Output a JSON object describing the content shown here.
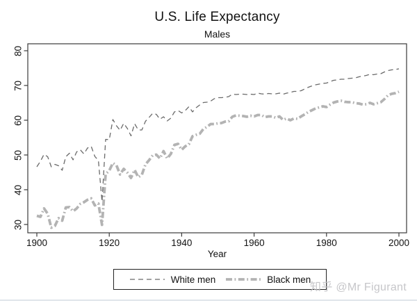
{
  "title": "U.S. Life Expectancy",
  "subtitle": "Males",
  "xaxis_title": "Year",
  "watermark": "知乎 @Mr Figurant",
  "axes": {
    "x_ticks": [
      1900,
      1920,
      1940,
      1960,
      1980,
      2000
    ],
    "y_ticks": [
      30,
      40,
      50,
      60,
      70,
      80
    ],
    "grid": "off",
    "legend_position": "bottom-center"
  },
  "styles": {
    "axis_color": "#3a3a3a",
    "white_men": {
      "color": "#6a6a6a",
      "width": 1.3,
      "dash": "7 5"
    },
    "black_men": {
      "color": "#b3b3b3",
      "width": 3.8,
      "dash": "9 3.5 1.8 3.5"
    }
  },
  "legend": {
    "entries": [
      {
        "label": "White men",
        "style": "white_men"
      },
      {
        "label": "Black men",
        "style": "black_men"
      }
    ]
  },
  "chart_data": {
    "type": "line",
    "title": "U.S. Life Expectancy",
    "subtitle": "Males",
    "xlabel": "Year",
    "ylabel": "",
    "xlim": [
      1897.5,
      2002
    ],
    "ylim": [
      27.5,
      82
    ],
    "x": [
      1900,
      1901,
      1902,
      1903,
      1904,
      1905,
      1906,
      1907,
      1908,
      1909,
      1910,
      1911,
      1912,
      1913,
      1914,
      1915,
      1916,
      1917,
      1918,
      1919,
      1920,
      1921,
      1922,
      1923,
      1924,
      1925,
      1926,
      1927,
      1928,
      1929,
      1930,
      1931,
      1932,
      1933,
      1934,
      1935,
      1936,
      1937,
      1938,
      1939,
      1940,
      1941,
      1942,
      1943,
      1944,
      1945,
      1946,
      1947,
      1948,
      1949,
      1950,
      1951,
      1952,
      1953,
      1954,
      1955,
      1956,
      1957,
      1958,
      1959,
      1960,
      1961,
      1962,
      1963,
      1964,
      1965,
      1966,
      1967,
      1968,
      1969,
      1970,
      1971,
      1972,
      1973,
      1974,
      1975,
      1976,
      1977,
      1978,
      1979,
      1980,
      1981,
      1982,
      1983,
      1984,
      1985,
      1986,
      1987,
      1988,
      1989,
      1990,
      1991,
      1992,
      1993,
      1994,
      1995,
      1996,
      1997,
      1998,
      1999,
      2000
    ],
    "series": [
      {
        "name": "White men",
        "values": [
          46.6,
          48.2,
          50.2,
          49.5,
          46.6,
          47.3,
          46.9,
          45.6,
          49.5,
          50.5,
          48.6,
          50.9,
          51.5,
          50.3,
          52.0,
          52.5,
          49.6,
          48.4,
          36.6,
          54.5,
          54.4,
          60.2,
          58.4,
          57.1,
          59.1,
          57.6,
          55.5,
          59.0,
          57.2,
          57.2,
          59.7,
          60.8,
          62.0,
          61.7,
          60.3,
          61.0,
          59.8,
          60.6,
          62.4,
          62.8,
          62.1,
          62.8,
          63.9,
          62.4,
          63.6,
          64.4,
          65.1,
          65.2,
          65.5,
          66.2,
          66.5,
          66.5,
          66.6,
          66.8,
          67.5,
          67.4,
          67.5,
          67.5,
          67.4,
          67.5,
          67.4,
          67.8,
          67.6,
          67.5,
          67.7,
          67.6,
          67.6,
          67.8,
          67.5,
          67.8,
          68.0,
          68.3,
          68.3,
          68.5,
          69.0,
          69.5,
          69.9,
          70.2,
          70.4,
          70.6,
          70.7,
          71.1,
          71.5,
          71.6,
          71.8,
          71.8,
          72.0,
          72.1,
          72.2,
          72.5,
          72.7,
          72.9,
          73.2,
          73.1,
          73.3,
          73.4,
          73.9,
          74.3,
          74.5,
          74.6,
          74.8
        ]
      },
      {
        "name": "Black men",
        "values": [
          32.5,
          32.2,
          34.6,
          33.1,
          29.1,
          29.6,
          31.8,
          31.1,
          34.9,
          35.0,
          33.8,
          34.6,
          35.9,
          36.4,
          37.1,
          37.5,
          35.5,
          36.0,
          29.9,
          44.5,
          45.5,
          47.7,
          47.0,
          44.4,
          46.0,
          44.9,
          43.4,
          45.7,
          43.6,
          44.3,
          47.3,
          48.5,
          49.9,
          50.1,
          49.0,
          51.1,
          49.0,
          50.3,
          52.9,
          53.2,
          51.5,
          52.5,
          53.1,
          55.4,
          55.8,
          56.1,
          57.5,
          58.1,
          58.9,
          58.9,
          59.1,
          59.2,
          59.6,
          59.7,
          61.0,
          61.4,
          61.3,
          61.2,
          61.0,
          61.3,
          61.1,
          61.5,
          61.5,
          60.9,
          61.1,
          61.1,
          60.7,
          61.1,
          60.1,
          60.5,
          60.0,
          60.5,
          60.4,
          61.1,
          61.7,
          62.4,
          62.9,
          63.4,
          63.7,
          64.0,
          63.8,
          64.5,
          65.1,
          65.4,
          65.6,
          65.3,
          65.2,
          65.2,
          64.9,
          64.8,
          64.5,
          64.6,
          65.0,
          64.6,
          64.9,
          65.2,
          66.1,
          67.2,
          67.6,
          67.8,
          68.2
        ]
      }
    ]
  }
}
